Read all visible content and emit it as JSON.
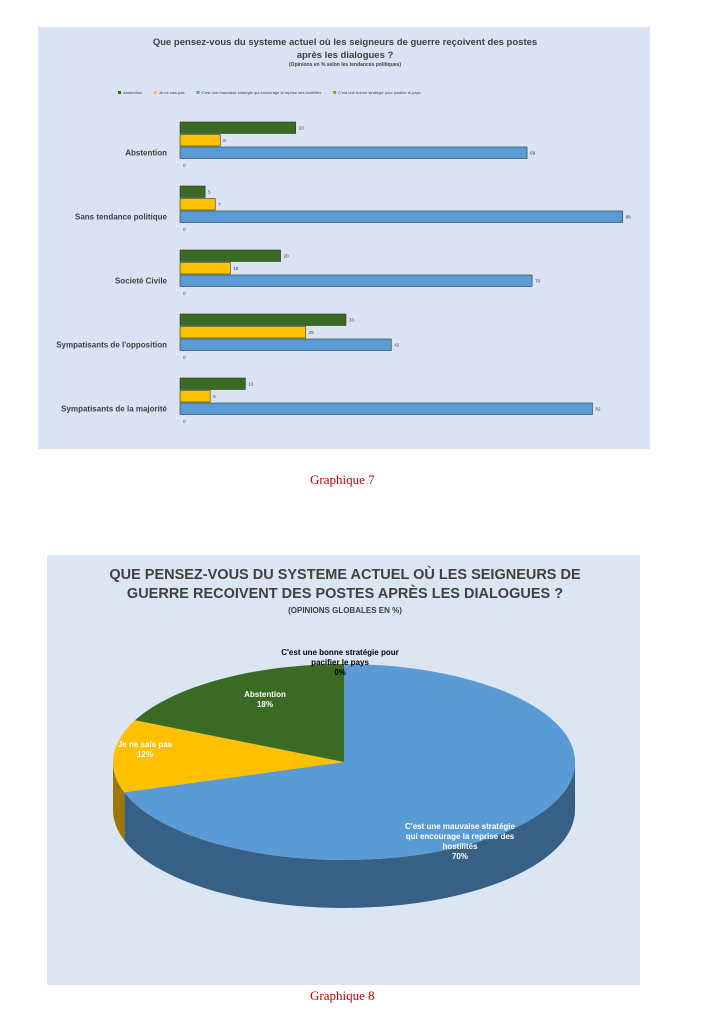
{
  "chart_data": [
    {
      "type": "bar",
      "orientation": "horizontal",
      "title": "Que pensez-vous du systeme actuel où les seigneurs de guerre reçoivent des postes après les dialogues ?",
      "subtitle": "(Opinions en % selon les tendances politiques)",
      "categories": [
        "Abstention",
        "Sans tendance politique",
        "Societé Civile",
        "Sympatisants de l'opposition",
        "Sympatisants de la majorité"
      ],
      "series": [
        {
          "name": "Abstention",
          "color": "#3b6a25",
          "values": [
            23,
            5,
            20,
            33,
            13
          ]
        },
        {
          "name": "Je ne sais pas",
          "color": "#ffc000",
          "values": [
            8,
            7,
            10,
            25,
            6
          ]
        },
        {
          "name": "C'est une mauvaise stratégie qui encourage la reprise des hostilités",
          "color": "#5b9bd5",
          "values": [
            69,
            88,
            70,
            42,
            82
          ]
        },
        {
          "name": "C'est une bonne stratégie pour pacifier le pays",
          "color": "#70ad47",
          "values": [
            0,
            0,
            0,
            0,
            0
          ]
        }
      ],
      "caption": "Graphique 7"
    },
    {
      "type": "pie",
      "title": "QUE PENSEZ-VOUS DU SYSTEME ACTUEL OÙ LES SEIGNEURS DE GUERRE RECOIVENT DES POSTES APRÈS LES DIALOGUES ?",
      "subtitle": "(OPINIONS GLOBALES EN %)",
      "categories": [
        "C'est une bonne stratégie pour pacifier le pays",
        "C'est une mauvaise stratégie qui encourage la reprise des hostilités",
        "Je ne sais pas",
        "Abstention"
      ],
      "values": [
        0,
        70,
        12,
        18
      ],
      "value_labels": [
        "0%",
        "70%",
        "12%",
        "18%"
      ],
      "colors": [
        "#70ad47",
        "#5b9bd5",
        "#ffc000",
        "#3b6a25"
      ],
      "caption": "Graphique 8"
    }
  ]
}
